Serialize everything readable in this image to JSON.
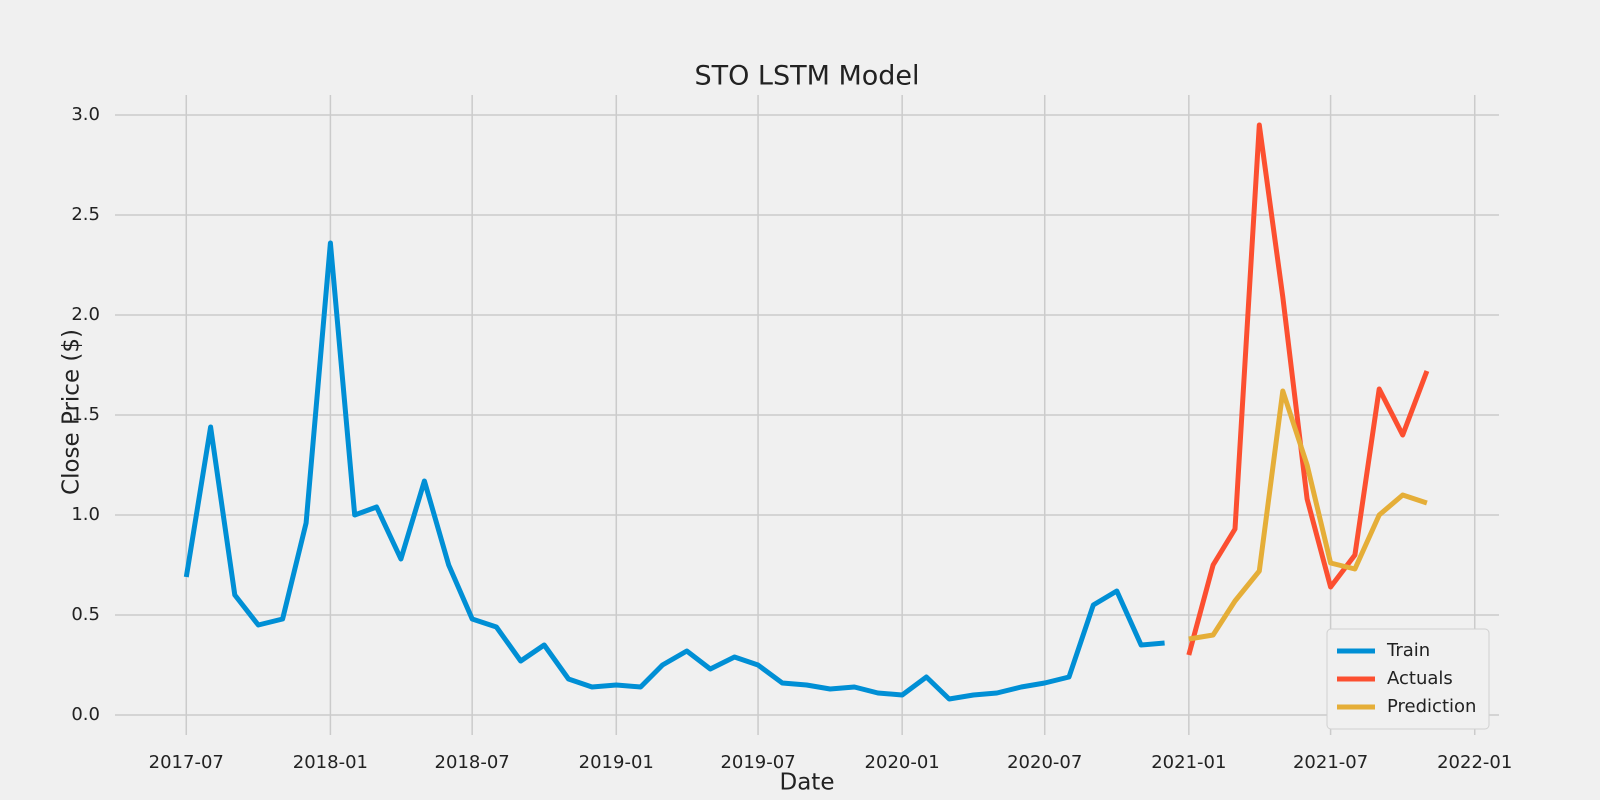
{
  "chart_data": {
    "type": "line",
    "title": "STO LSTM Model",
    "x_label": "Date",
    "y_label": "Close Price ($)",
    "xlim": [
      "2017-04",
      "2022-02"
    ],
    "xticks": [
      "2017-07",
      "2018-01",
      "2018-07",
      "2019-01",
      "2019-07",
      "2020-01",
      "2020-07",
      "2021-01",
      "2021-07",
      "2022-01"
    ],
    "ylim": [
      -0.1,
      3.1
    ],
    "yticks": [
      0.0,
      0.5,
      1.0,
      1.5,
      2.0,
      2.5,
      3.0
    ],
    "grid": true,
    "legend_position": "lower-right",
    "series": [
      {
        "name": "Train",
        "color": "#008fd5",
        "x": [
          "2017-07",
          "2017-08",
          "2017-09",
          "2017-10",
          "2017-11",
          "2017-12",
          "2018-01",
          "2018-02",
          "2018-03",
          "2018-04",
          "2018-05",
          "2018-06",
          "2018-07",
          "2018-08",
          "2018-09",
          "2018-10",
          "2018-11",
          "2018-12",
          "2019-01",
          "2019-02",
          "2019-03",
          "2019-04",
          "2019-05",
          "2019-06",
          "2019-07",
          "2019-08",
          "2019-09",
          "2019-10",
          "2019-11",
          "2019-12",
          "2020-01",
          "2020-02",
          "2020-03",
          "2020-04",
          "2020-05",
          "2020-06",
          "2020-07",
          "2020-08",
          "2020-09",
          "2020-10",
          "2020-11",
          "2020-12"
        ],
        "values": [
          0.69,
          1.44,
          0.6,
          0.45,
          0.48,
          0.96,
          2.36,
          1.0,
          1.04,
          0.78,
          1.17,
          0.75,
          0.48,
          0.44,
          0.27,
          0.35,
          0.18,
          0.14,
          0.15,
          0.14,
          0.25,
          0.32,
          0.23,
          0.29,
          0.25,
          0.16,
          0.15,
          0.13,
          0.14,
          0.11,
          0.1,
          0.19,
          0.08,
          0.1,
          0.11,
          0.14,
          0.16,
          0.19,
          0.55,
          0.62,
          0.35,
          0.36
        ]
      },
      {
        "name": "Actuals",
        "color": "#fc4f30",
        "x": [
          "2021-01",
          "2021-02",
          "2021-03",
          "2021-04",
          "2021-05",
          "2021-06",
          "2021-07",
          "2021-08",
          "2021-09",
          "2021-10",
          "2021-11"
        ],
        "values": [
          0.3,
          0.75,
          0.93,
          2.95,
          2.09,
          1.08,
          0.64,
          0.8,
          1.63,
          1.4,
          1.72
        ]
      },
      {
        "name": "Prediction",
        "color": "#e5ae38",
        "x": [
          "2021-01",
          "2021-02",
          "2021-03",
          "2021-04",
          "2021-05",
          "2021-06",
          "2021-07",
          "2021-08",
          "2021-09",
          "2021-10",
          "2021-11"
        ],
        "values": [
          0.38,
          0.4,
          0.57,
          0.72,
          1.62,
          1.25,
          0.76,
          0.73,
          1.0,
          1.1,
          1.06
        ]
      }
    ]
  }
}
